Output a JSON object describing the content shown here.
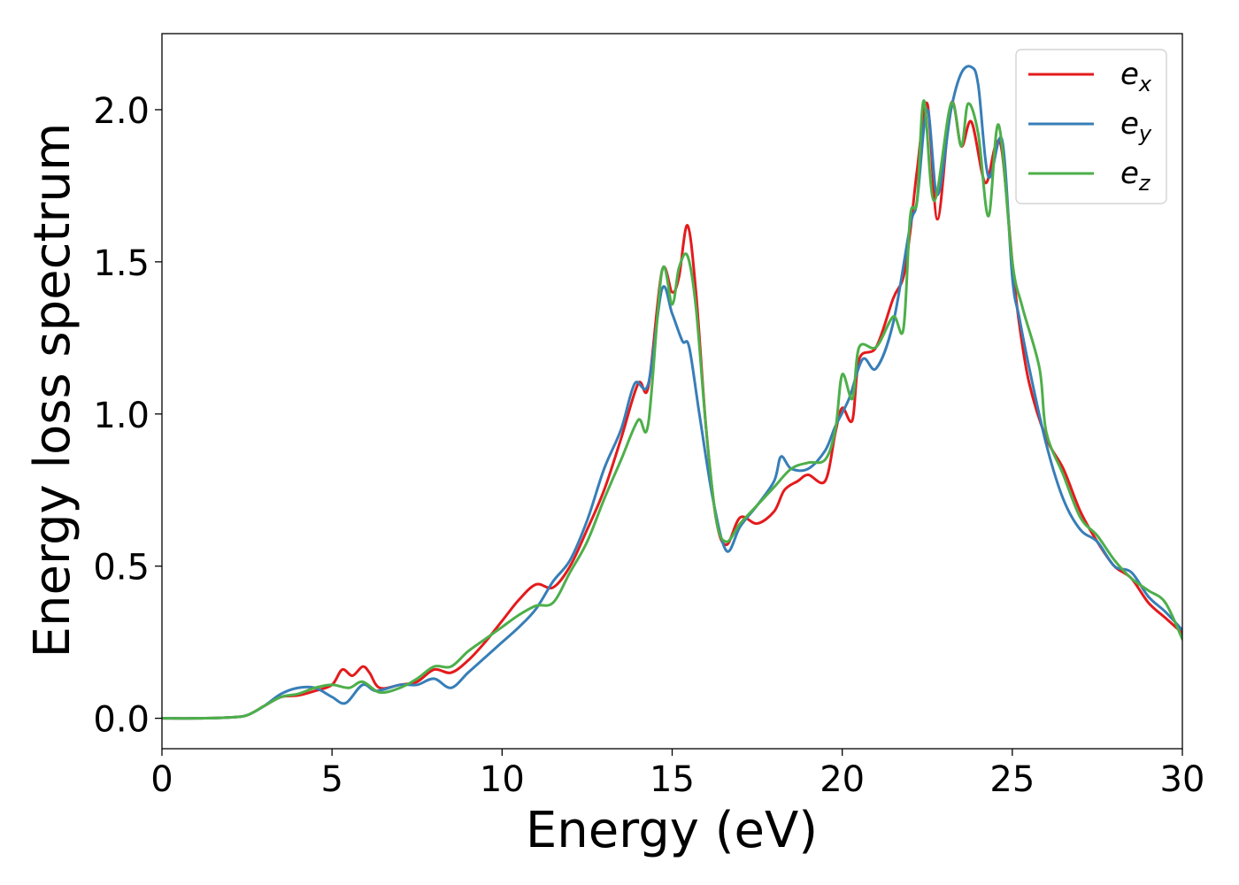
{
  "chart_data": {
    "type": "line",
    "xlabel": "Energy (eV)",
    "ylabel": "Energy loss spectrum",
    "xlim": [
      0,
      30
    ],
    "ylim": [
      -0.1,
      2.25
    ],
    "xticks": [
      0,
      5,
      10,
      15,
      20,
      25,
      30
    ],
    "xtick_labels": [
      "0",
      "5",
      "10",
      "15",
      "20",
      "25",
      "30"
    ],
    "yticks": [
      0.0,
      0.5,
      1.0,
      1.5,
      2.0
    ],
    "ytick_labels": [
      "0.0",
      "0.5",
      "1.0",
      "1.5",
      "2.0"
    ],
    "grid": false,
    "legend_position": "top-right",
    "series": [
      {
        "name": "e",
        "subscript": "x",
        "color": "#e41a1c",
        "points": [
          [
            0,
            0.0
          ],
          [
            1,
            0.0
          ],
          [
            2,
            0.003
          ],
          [
            2.5,
            0.01
          ],
          [
            3,
            0.04
          ],
          [
            3.5,
            0.07
          ],
          [
            4,
            0.075
          ],
          [
            4.5,
            0.09
          ],
          [
            5,
            0.11
          ],
          [
            5.3,
            0.16
          ],
          [
            5.6,
            0.14
          ],
          [
            5.9,
            0.17
          ],
          [
            6.1,
            0.15
          ],
          [
            6.4,
            0.1
          ],
          [
            7,
            0.11
          ],
          [
            7.5,
            0.12
          ],
          [
            8,
            0.16
          ],
          [
            8.5,
            0.15
          ],
          [
            9,
            0.19
          ],
          [
            9.5,
            0.25
          ],
          [
            10,
            0.32
          ],
          [
            10.5,
            0.39
          ],
          [
            11,
            0.44
          ],
          [
            11.5,
            0.43
          ],
          [
            12,
            0.5
          ],
          [
            12.5,
            0.62
          ],
          [
            13,
            0.75
          ],
          [
            13.5,
            0.92
          ],
          [
            14,
            1.1
          ],
          [
            14.3,
            1.09
          ],
          [
            14.7,
            1.47
          ],
          [
            15.0,
            1.4
          ],
          [
            15.2,
            1.45
          ],
          [
            15.45,
            1.62
          ],
          [
            15.7,
            1.4
          ],
          [
            16.0,
            0.95
          ],
          [
            16.3,
            0.65
          ],
          [
            16.6,
            0.57
          ],
          [
            17.0,
            0.66
          ],
          [
            17.5,
            0.64
          ],
          [
            18.0,
            0.68
          ],
          [
            18.3,
            0.75
          ],
          [
            18.7,
            0.78
          ],
          [
            19.0,
            0.8
          ],
          [
            19.5,
            0.78
          ],
          [
            19.8,
            0.94
          ],
          [
            20.0,
            1.02
          ],
          [
            20.3,
            0.98
          ],
          [
            20.5,
            1.18
          ],
          [
            21.0,
            1.22
          ],
          [
            21.5,
            1.38
          ],
          [
            21.8,
            1.45
          ],
          [
            22.0,
            1.6
          ],
          [
            22.2,
            1.8
          ],
          [
            22.5,
            2.02
          ],
          [
            22.8,
            1.64
          ],
          [
            23.2,
            2.02
          ],
          [
            23.5,
            1.88
          ],
          [
            23.8,
            1.96
          ],
          [
            24.2,
            1.76
          ],
          [
            24.5,
            1.88
          ],
          [
            24.7,
            1.86
          ],
          [
            25.0,
            1.5
          ],
          [
            25.2,
            1.3
          ],
          [
            25.5,
            1.1
          ],
          [
            26.0,
            0.92
          ],
          [
            26.5,
            0.82
          ],
          [
            27.0,
            0.68
          ],
          [
            27.5,
            0.58
          ],
          [
            28.0,
            0.5
          ],
          [
            28.5,
            0.46
          ],
          [
            29.0,
            0.38
          ],
          [
            29.5,
            0.33
          ],
          [
            30,
            0.28
          ]
        ]
      },
      {
        "name": "e",
        "subscript": "y",
        "color": "#377eb8",
        "points": [
          [
            0,
            0.0
          ],
          [
            1,
            0.0
          ],
          [
            2,
            0.003
          ],
          [
            2.5,
            0.01
          ],
          [
            3,
            0.04
          ],
          [
            3.5,
            0.08
          ],
          [
            4,
            0.1
          ],
          [
            4.5,
            0.1
          ],
          [
            5,
            0.07
          ],
          [
            5.4,
            0.05
          ],
          [
            5.9,
            0.11
          ],
          [
            6.3,
            0.09
          ],
          [
            7,
            0.11
          ],
          [
            7.5,
            0.11
          ],
          [
            8,
            0.13
          ],
          [
            8.5,
            0.1
          ],
          [
            9,
            0.15
          ],
          [
            9.5,
            0.2
          ],
          [
            10,
            0.25
          ],
          [
            10.5,
            0.3
          ],
          [
            11,
            0.36
          ],
          [
            11.5,
            0.45
          ],
          [
            12,
            0.52
          ],
          [
            12.5,
            0.65
          ],
          [
            13,
            0.82
          ],
          [
            13.5,
            0.95
          ],
          [
            13.9,
            1.1
          ],
          [
            14.3,
            1.1
          ],
          [
            14.7,
            1.41
          ],
          [
            15.0,
            1.33
          ],
          [
            15.3,
            1.24
          ],
          [
            15.5,
            1.22
          ],
          [
            15.8,
            1.0
          ],
          [
            16.2,
            0.72
          ],
          [
            16.6,
            0.55
          ],
          [
            17.0,
            0.63
          ],
          [
            17.5,
            0.7
          ],
          [
            18.0,
            0.78
          ],
          [
            18.2,
            0.86
          ],
          [
            18.5,
            0.82
          ],
          [
            19.0,
            0.82
          ],
          [
            19.5,
            0.88
          ],
          [
            19.8,
            0.96
          ],
          [
            20.2,
            1.05
          ],
          [
            20.6,
            1.18
          ],
          [
            21.0,
            1.15
          ],
          [
            21.5,
            1.3
          ],
          [
            22.0,
            1.62
          ],
          [
            22.2,
            1.7
          ],
          [
            22.5,
            2.0
          ],
          [
            22.8,
            1.72
          ],
          [
            23.2,
            2.0
          ],
          [
            23.5,
            2.12
          ],
          [
            23.8,
            2.14
          ],
          [
            24.0,
            2.08
          ],
          [
            24.3,
            1.78
          ],
          [
            24.7,
            1.9
          ],
          [
            25.0,
            1.45
          ],
          [
            25.2,
            1.32
          ],
          [
            25.5,
            1.15
          ],
          [
            26.0,
            0.9
          ],
          [
            26.5,
            0.72
          ],
          [
            27.0,
            0.62
          ],
          [
            27.5,
            0.58
          ],
          [
            28.0,
            0.5
          ],
          [
            28.5,
            0.48
          ],
          [
            29.0,
            0.4
          ],
          [
            29.5,
            0.35
          ],
          [
            30,
            0.29
          ]
        ]
      },
      {
        "name": "e",
        "subscript": "z",
        "color": "#4daf4a",
        "points": [
          [
            0,
            0.0
          ],
          [
            1,
            0.0
          ],
          [
            2,
            0.003
          ],
          [
            2.5,
            0.01
          ],
          [
            3,
            0.04
          ],
          [
            3.5,
            0.07
          ],
          [
            4,
            0.08
          ],
          [
            4.5,
            0.1
          ],
          [
            5,
            0.11
          ],
          [
            5.5,
            0.1
          ],
          [
            5.9,
            0.12
          ],
          [
            6.4,
            0.085
          ],
          [
            7,
            0.1
          ],
          [
            7.5,
            0.13
          ],
          [
            8,
            0.17
          ],
          [
            8.5,
            0.17
          ],
          [
            9,
            0.22
          ],
          [
            9.5,
            0.26
          ],
          [
            10,
            0.3
          ],
          [
            10.5,
            0.34
          ],
          [
            11,
            0.37
          ],
          [
            11.5,
            0.38
          ],
          [
            12,
            0.48
          ],
          [
            12.5,
            0.58
          ],
          [
            13,
            0.72
          ],
          [
            13.5,
            0.85
          ],
          [
            14,
            0.98
          ],
          [
            14.3,
            0.97
          ],
          [
            14.7,
            1.47
          ],
          [
            15.0,
            1.36
          ],
          [
            15.2,
            1.48
          ],
          [
            15.45,
            1.52
          ],
          [
            15.7,
            1.35
          ],
          [
            16.0,
            0.95
          ],
          [
            16.3,
            0.65
          ],
          [
            16.6,
            0.58
          ],
          [
            17.0,
            0.64
          ],
          [
            17.5,
            0.7
          ],
          [
            18.0,
            0.76
          ],
          [
            18.5,
            0.82
          ],
          [
            19.0,
            0.84
          ],
          [
            19.5,
            0.85
          ],
          [
            19.8,
            0.95
          ],
          [
            20.0,
            1.13
          ],
          [
            20.3,
            1.05
          ],
          [
            20.5,
            1.22
          ],
          [
            21.0,
            1.22
          ],
          [
            21.5,
            1.32
          ],
          [
            21.8,
            1.28
          ],
          [
            22.0,
            1.65
          ],
          [
            22.2,
            1.7
          ],
          [
            22.4,
            2.03
          ],
          [
            22.7,
            1.7
          ],
          [
            23.2,
            2.02
          ],
          [
            23.5,
            1.88
          ],
          [
            23.7,
            2.02
          ],
          [
            24.0,
            1.92
          ],
          [
            24.3,
            1.65
          ],
          [
            24.6,
            1.95
          ],
          [
            25.0,
            1.5
          ],
          [
            25.3,
            1.35
          ],
          [
            25.8,
            1.15
          ],
          [
            26.0,
            0.94
          ],
          [
            26.5,
            0.8
          ],
          [
            27.0,
            0.66
          ],
          [
            27.5,
            0.6
          ],
          [
            28.0,
            0.52
          ],
          [
            28.5,
            0.46
          ],
          [
            29.0,
            0.42
          ],
          [
            29.5,
            0.38
          ],
          [
            30,
            0.26
          ]
        ]
      }
    ]
  }
}
